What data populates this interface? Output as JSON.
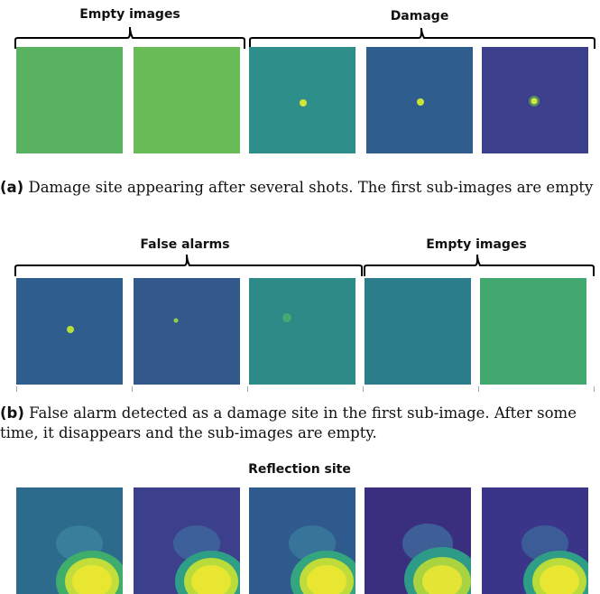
{
  "figure": {
    "row_a": {
      "group_left": "Empty images",
      "group_right": "Damage",
      "caption_tag": "(a)",
      "caption_text": " Damage site appearing after several shots. The first sub-images are empty"
    },
    "row_b": {
      "group_left": "False alarms",
      "group_right": "Empty images",
      "caption_tag": "(b)",
      "caption_text": " False alarm detected as a damage site in the first sub-image. After some time, it disappears and the sub-images are empty."
    },
    "row_c": {
      "group_title": "Reflection site"
    }
  },
  "colors": {
    "viridis_dark": "#3b3f8c",
    "viridis_mid": "#2b8a8a",
    "viridis_green": "#54b85d",
    "viridis_yellow": "#e8e630"
  }
}
